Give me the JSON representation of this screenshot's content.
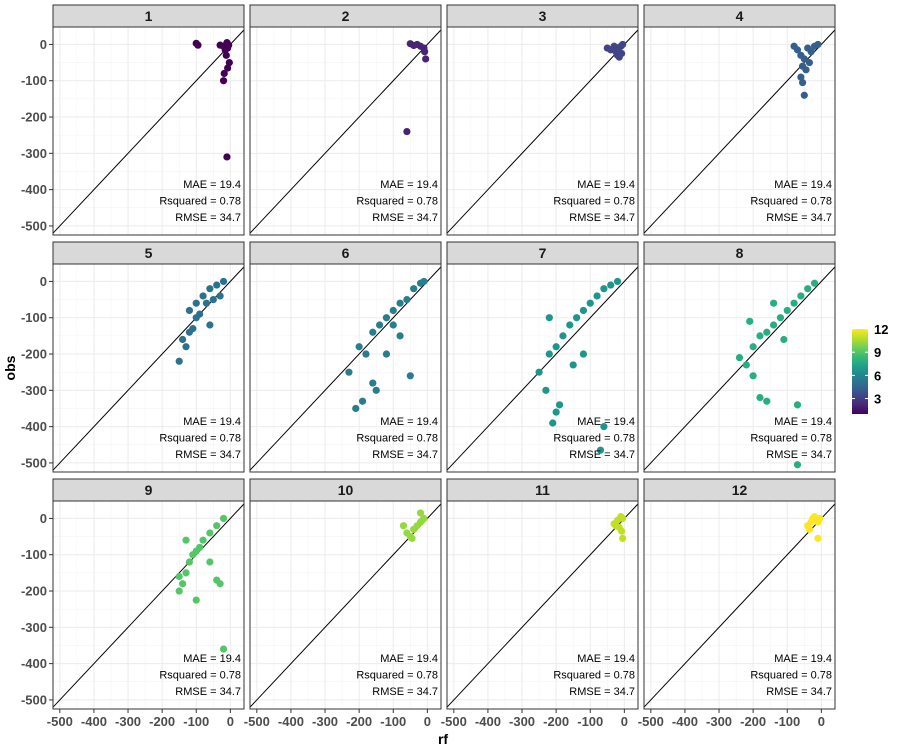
{
  "chart_data": {
    "type": "scatter",
    "facet_layout": "3 rows x 4 columns",
    "xlabel": "rf",
    "ylabel": "obs",
    "xlim": [
      -520,
      40
    ],
    "ylim": [
      -525,
      48
    ],
    "x_ticks": [
      -500,
      -400,
      -300,
      -200,
      -100,
      0
    ],
    "y_ticks": [
      0,
      -100,
      -200,
      -300,
      -400,
      -500
    ],
    "reference_line": "y = x",
    "grid": true,
    "legend": {
      "placement": "right",
      "type": "colorbar",
      "ticks": [
        12,
        9,
        6,
        3
      ],
      "range": [
        1,
        12
      ],
      "colors": [
        "#440154",
        "#482878",
        "#3e4a89",
        "#31688e",
        "#26828e",
        "#1f9e89",
        "#35b779",
        "#6ece58",
        "#b5de2b",
        "#fde725"
      ]
    },
    "annotations": [
      "MAE = 19.4",
      "Rsquared = 0.78",
      "RMSE = 34.7"
    ],
    "facets": [
      {
        "label": "1",
        "color": "#440154",
        "points": [
          [
            -100,
            3
          ],
          [
            -95,
            -2
          ],
          [
            -10,
            5
          ],
          [
            -20,
            -5
          ],
          [
            -30,
            -2
          ],
          [
            -15,
            -15
          ],
          [
            -5,
            -2
          ],
          [
            -8,
            -10
          ],
          [
            -12,
            -30
          ],
          [
            -3,
            -50
          ],
          [
            -8,
            -65
          ],
          [
            -18,
            -80
          ],
          [
            -20,
            -100
          ],
          [
            -10,
            -310
          ]
        ]
      },
      {
        "label": "2",
        "color": "#482475",
        "points": [
          [
            -50,
            2
          ],
          [
            -40,
            -3
          ],
          [
            -30,
            0
          ],
          [
            -20,
            -5
          ],
          [
            -10,
            -10
          ],
          [
            -8,
            -20
          ],
          [
            -5,
            -40
          ],
          [
            -60,
            -240
          ]
        ]
      },
      {
        "label": "3",
        "color": "#414487",
        "points": [
          [
            -50,
            -10
          ],
          [
            -40,
            -15
          ],
          [
            -30,
            -5
          ],
          [
            -25,
            -20
          ],
          [
            -15,
            -8
          ],
          [
            -10,
            -5
          ],
          [
            -8,
            -25
          ],
          [
            -5,
            0
          ],
          [
            -20,
            -30
          ],
          [
            -15,
            -35
          ]
        ]
      },
      {
        "label": "4",
        "color": "#355f8d",
        "points": [
          [
            -80,
            -5
          ],
          [
            -70,
            -15
          ],
          [
            -60,
            -30
          ],
          [
            -50,
            -40
          ],
          [
            -40,
            -10
          ],
          [
            -30,
            -20
          ],
          [
            -20,
            -5
          ],
          [
            -10,
            0
          ],
          [
            -55,
            -60
          ],
          [
            -45,
            -70
          ],
          [
            -35,
            -50
          ],
          [
            -60,
            -90
          ],
          [
            -55,
            -105
          ],
          [
            -50,
            -140
          ]
        ]
      },
      {
        "label": "5",
        "color": "#2c728e",
        "points": [
          [
            -120,
            -80
          ],
          [
            -100,
            -60
          ],
          [
            -80,
            -40
          ],
          [
            -60,
            -20
          ],
          [
            -40,
            -10
          ],
          [
            -20,
            0
          ],
          [
            -100,
            -100
          ],
          [
            -120,
            -140
          ],
          [
            -140,
            -160
          ],
          [
            -130,
            -180
          ],
          [
            -110,
            -130
          ],
          [
            -70,
            -60
          ],
          [
            -50,
            -50
          ],
          [
            -90,
            -90
          ],
          [
            -150,
            -220
          ],
          [
            -60,
            -120
          ],
          [
            -30,
            -40
          ]
        ]
      },
      {
        "label": "6",
        "color": "#287d8e",
        "points": [
          [
            -200,
            -180
          ],
          [
            -180,
            -200
          ],
          [
            -160,
            -140
          ],
          [
            -140,
            -120
          ],
          [
            -120,
            -100
          ],
          [
            -100,
            -80
          ],
          [
            -80,
            -60
          ],
          [
            -60,
            -50
          ],
          [
            -40,
            -20
          ],
          [
            -20,
            -5
          ],
          [
            -10,
            0
          ],
          [
            -160,
            -280
          ],
          [
            -150,
            -300
          ],
          [
            -190,
            -330
          ],
          [
            -210,
            -350
          ],
          [
            -230,
            -250
          ],
          [
            -100,
            -120
          ],
          [
            -120,
            -200
          ],
          [
            -50,
            -260
          ],
          [
            -80,
            -150
          ]
        ]
      },
      {
        "label": "7",
        "color": "#1f968b",
        "points": [
          [
            -250,
            -250
          ],
          [
            -230,
            -300
          ],
          [
            -220,
            -200
          ],
          [
            -200,
            -180
          ],
          [
            -180,
            -150
          ],
          [
            -160,
            -120
          ],
          [
            -140,
            -100
          ],
          [
            -120,
            -80
          ],
          [
            -100,
            -60
          ],
          [
            -80,
            -40
          ],
          [
            -60,
            -20
          ],
          [
            -40,
            -10
          ],
          [
            -20,
            0
          ],
          [
            -200,
            -360
          ],
          [
            -210,
            -390
          ],
          [
            -190,
            -340
          ],
          [
            -150,
            -230
          ],
          [
            -60,
            -400
          ],
          [
            -70,
            -465
          ],
          [
            -220,
            -100
          ],
          [
            -120,
            -200
          ]
        ]
      },
      {
        "label": "8",
        "color": "#29af7f",
        "points": [
          [
            -240,
            -210
          ],
          [
            -220,
            -230
          ],
          [
            -200,
            -180
          ],
          [
            -180,
            -150
          ],
          [
            -160,
            -140
          ],
          [
            -140,
            -120
          ],
          [
            -120,
            -100
          ],
          [
            -100,
            -80
          ],
          [
            -80,
            -60
          ],
          [
            -60,
            -40
          ],
          [
            -40,
            -20
          ],
          [
            -20,
            -5
          ],
          [
            -200,
            -260
          ],
          [
            -180,
            -320
          ],
          [
            -160,
            -330
          ],
          [
            -70,
            -340
          ],
          [
            -70,
            -505
          ],
          [
            -210,
            -110
          ],
          [
            -140,
            -60
          ],
          [
            -110,
            -160
          ]
        ]
      },
      {
        "label": "9",
        "color": "#55c667",
        "points": [
          [
            -150,
            -160
          ],
          [
            -140,
            -180
          ],
          [
            -130,
            -150
          ],
          [
            -120,
            -120
          ],
          [
            -110,
            -100
          ],
          [
            -100,
            -90
          ],
          [
            -90,
            -80
          ],
          [
            -80,
            -60
          ],
          [
            -60,
            -40
          ],
          [
            -40,
            -20
          ],
          [
            -20,
            0
          ],
          [
            -150,
            -200
          ],
          [
            -100,
            -225
          ],
          [
            -40,
            -170
          ],
          [
            -30,
            -180
          ],
          [
            -20,
            -360
          ],
          [
            -130,
            -60
          ],
          [
            -60,
            -120
          ]
        ]
      },
      {
        "label": "10",
        "color": "#95d840",
        "points": [
          [
            -70,
            -20
          ],
          [
            -60,
            -40
          ],
          [
            -50,
            -50
          ],
          [
            -40,
            -30
          ],
          [
            -30,
            -20
          ],
          [
            -20,
            -10
          ],
          [
            -10,
            0
          ],
          [
            -20,
            15
          ],
          [
            -15,
            -5
          ],
          [
            -45,
            -55
          ]
        ]
      },
      {
        "label": "11",
        "color": "#c2df23",
        "points": [
          [
            -30,
            -15
          ],
          [
            -20,
            -5
          ],
          [
            -10,
            5
          ],
          [
            -5,
            0
          ],
          [
            -15,
            -25
          ],
          [
            -8,
            -35
          ],
          [
            -5,
            -55
          ],
          [
            -25,
            -20
          ]
        ]
      },
      {
        "label": "12",
        "color": "#fde725",
        "points": [
          [
            -40,
            -20
          ],
          [
            -30,
            -10
          ],
          [
            -25,
            0
          ],
          [
            -20,
            5
          ],
          [
            -15,
            -5
          ],
          [
            -10,
            -10
          ],
          [
            -5,
            0
          ],
          [
            -35,
            -30
          ],
          [
            -10,
            -55
          ]
        ]
      }
    ]
  }
}
